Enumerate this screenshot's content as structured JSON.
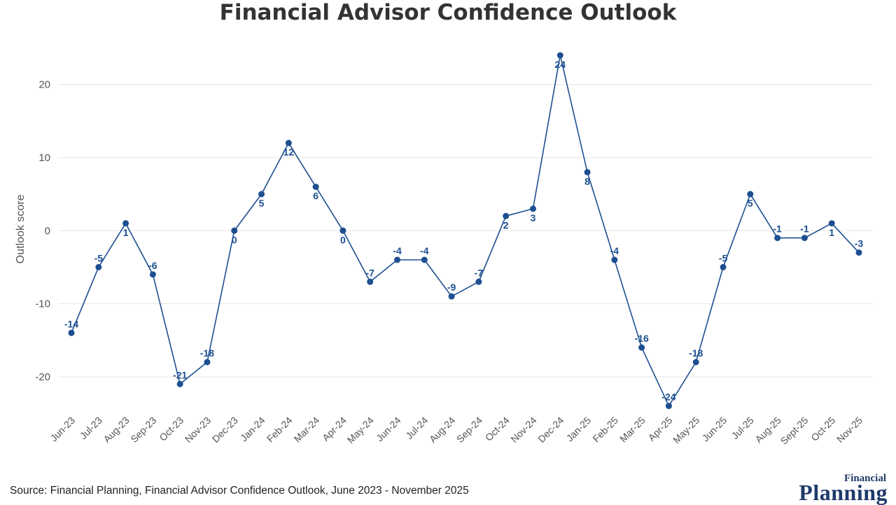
{
  "chart_data": {
    "type": "line",
    "title": "Financial Advisor Confidence Outlook",
    "xlabel": "",
    "ylabel": "Outlook score",
    "ylim": [
      -25,
      24
    ],
    "yticks": [
      20,
      10,
      0,
      -10,
      -20
    ],
    "grid": true,
    "line_color": "#1d4f91",
    "categories": [
      "Jun-23",
      "Jul-23",
      "Aug-23",
      "Sep-23",
      "Oct-23",
      "Nov-23",
      "Dec-23",
      "Jan-24",
      "Feb-24",
      "Mar-24",
      "Apr-24",
      "May-24",
      "Jun-24",
      "Jul-24",
      "Aug-24",
      "Sep-24",
      "Oct-24",
      "Nov-24",
      "Dec-24",
      "Jan-25",
      "Feb-25",
      "Mar-25",
      "Apr-25",
      "May-25",
      "Jun-25",
      "Jul-25",
      "Aug-25",
      "Sept-25",
      "Oct-25",
      "Nov-25"
    ],
    "values": [
      -14,
      -5,
      1,
      -6,
      -21,
      -18,
      0,
      5,
      12,
      6,
      0,
      -7,
      -4,
      -4,
      -9,
      -7,
      2,
      3,
      24,
      8,
      -4,
      -16,
      -24,
      -18,
      -5,
      5,
      -1,
      -1,
      1,
      -3
    ],
    "label_positions": [
      "above",
      "above",
      "below",
      "above",
      "above",
      "above",
      "below",
      "below",
      "below",
      "below",
      "below",
      "above",
      "above",
      "above",
      "above",
      "above",
      "below",
      "below",
      "below",
      "below",
      "above",
      "above",
      "above",
      "above",
      "above",
      "below",
      "above",
      "above",
      "below",
      "above"
    ]
  },
  "footer": {
    "source": "Source: Financial Planning, Financial Advisor Confidence Outlook, June 2023 - November 2025"
  },
  "brand": {
    "line1": "Financial",
    "line2": "Planning"
  }
}
